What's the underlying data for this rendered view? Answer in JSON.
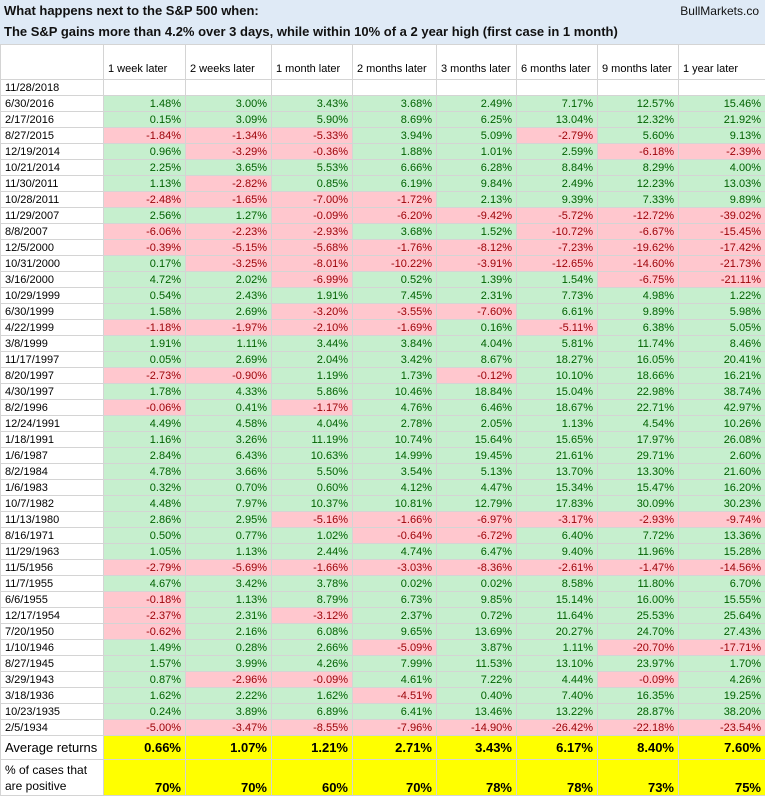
{
  "header": {
    "title": "What happens next to the S&P 500 when:",
    "source": "BullMarkets.co",
    "subtitle": "The S&P gains more than 4.2% over 3 days, while within 10% of a 2 year high (first case in 1 month)"
  },
  "table": {
    "columns": [
      "1 week later",
      "2 weeks later",
      "1 month later",
      "2 months later",
      "3 months later",
      "6 months later",
      "9 months later",
      "1 year later"
    ],
    "current": "11/28/2018",
    "rows": [
      [
        "6/30/2016",
        "1.48%",
        "3.00%",
        "3.43%",
        "3.68%",
        "2.49%",
        "7.17%",
        "12.57%",
        "15.46%"
      ],
      [
        "2/17/2016",
        "0.15%",
        "3.09%",
        "5.90%",
        "8.69%",
        "6.25%",
        "13.04%",
        "12.32%",
        "21.92%"
      ],
      [
        "8/27/2015",
        "-1.84%",
        "-1.34%",
        "-5.33%",
        "3.94%",
        "5.09%",
        "-2.79%",
        "5.60%",
        "9.13%"
      ],
      [
        "12/19/2014",
        "0.96%",
        "-3.29%",
        "-0.36%",
        "1.88%",
        "1.01%",
        "2.59%",
        "-6.18%",
        "-2.39%"
      ],
      [
        "10/21/2014",
        "2.25%",
        "3.65%",
        "5.53%",
        "6.66%",
        "6.28%",
        "8.84%",
        "8.29%",
        "4.00%"
      ],
      [
        "11/30/2011",
        "1.13%",
        "-2.82%",
        "0.85%",
        "6.19%",
        "9.84%",
        "2.49%",
        "12.23%",
        "13.03%"
      ],
      [
        "10/28/2011",
        "-2.48%",
        "-1.65%",
        "-7.00%",
        "-1.72%",
        "2.13%",
        "9.39%",
        "7.33%",
        "9.89%"
      ],
      [
        "11/29/2007",
        "2.56%",
        "1.27%",
        "-0.09%",
        "-6.20%",
        "-9.42%",
        "-5.72%",
        "-12.72%",
        "-39.02%"
      ],
      [
        "8/8/2007",
        "-6.06%",
        "-2.23%",
        "-2.93%",
        "3.68%",
        "1.52%",
        "-10.72%",
        "-6.67%",
        "-15.45%"
      ],
      [
        "12/5/2000",
        "-0.39%",
        "-5.15%",
        "-5.68%",
        "-1.76%",
        "-8.12%",
        "-7.23%",
        "-19.62%",
        "-17.42%"
      ],
      [
        "10/31/2000",
        "0.17%",
        "-3.25%",
        "-8.01%",
        "-10.22%",
        "-3.91%",
        "-12.65%",
        "-14.60%",
        "-21.73%"
      ],
      [
        "3/16/2000",
        "4.72%",
        "2.02%",
        "-6.99%",
        "0.52%",
        "1.39%",
        "1.54%",
        "-6.75%",
        "-21.11%"
      ],
      [
        "10/29/1999",
        "0.54%",
        "2.43%",
        "1.91%",
        "7.45%",
        "2.31%",
        "7.73%",
        "4.98%",
        "1.22%"
      ],
      [
        "6/30/1999",
        "1.58%",
        "2.69%",
        "-3.20%",
        "-3.55%",
        "-7.60%",
        "6.61%",
        "9.89%",
        "5.98%"
      ],
      [
        "4/22/1999",
        "-1.18%",
        "-1.97%",
        "-2.10%",
        "-1.69%",
        "0.16%",
        "-5.11%",
        "6.38%",
        "5.05%"
      ],
      [
        "3/8/1999",
        "1.91%",
        "1.11%",
        "3.44%",
        "3.84%",
        "4.04%",
        "5.81%",
        "11.74%",
        "8.46%"
      ],
      [
        "11/17/1997",
        "0.05%",
        "2.69%",
        "2.04%",
        "3.42%",
        "8.67%",
        "18.27%",
        "16.05%",
        "20.41%"
      ],
      [
        "8/20/1997",
        "-2.73%",
        "-0.90%",
        "1.19%",
        "1.73%",
        "-0.12%",
        "10.10%",
        "18.66%",
        "16.21%"
      ],
      [
        "4/30/1997",
        "1.78%",
        "4.33%",
        "5.86%",
        "10.46%",
        "18.84%",
        "15.04%",
        "22.98%",
        "38.74%"
      ],
      [
        "8/2/1996",
        "-0.06%",
        "0.41%",
        "-1.17%",
        "4.76%",
        "6.46%",
        "18.67%",
        "22.71%",
        "42.97%"
      ],
      [
        "12/24/1991",
        "4.49%",
        "4.58%",
        "4.04%",
        "2.78%",
        "2.05%",
        "1.13%",
        "4.54%",
        "10.26%"
      ],
      [
        "1/18/1991",
        "1.16%",
        "3.26%",
        "11.19%",
        "10.74%",
        "15.64%",
        "15.65%",
        "17.97%",
        "26.08%"
      ],
      [
        "1/6/1987",
        "2.84%",
        "6.43%",
        "10.63%",
        "14.99%",
        "19.45%",
        "21.61%",
        "29.71%",
        "2.60%"
      ],
      [
        "8/2/1984",
        "4.78%",
        "3.66%",
        "5.50%",
        "3.54%",
        "5.13%",
        "13.70%",
        "13.30%",
        "21.60%"
      ],
      [
        "1/6/1983",
        "0.32%",
        "0.70%",
        "0.60%",
        "4.12%",
        "4.47%",
        "15.34%",
        "15.47%",
        "16.20%"
      ],
      [
        "10/7/1982",
        "4.48%",
        "7.97%",
        "10.37%",
        "10.81%",
        "12.79%",
        "17.83%",
        "30.09%",
        "30.23%"
      ],
      [
        "11/13/1980",
        "2.86%",
        "2.95%",
        "-5.16%",
        "-1.66%",
        "-6.97%",
        "-3.17%",
        "-2.93%",
        "-9.74%"
      ],
      [
        "8/16/1971",
        "0.50%",
        "0.77%",
        "1.02%",
        "-0.64%",
        "-6.72%",
        "6.40%",
        "7.72%",
        "13.36%"
      ],
      [
        "11/29/1963",
        "1.05%",
        "1.13%",
        "2.44%",
        "4.74%",
        "6.47%",
        "9.40%",
        "11.96%",
        "15.28%"
      ],
      [
        "11/5/1956",
        "-2.79%",
        "-5.69%",
        "-1.66%",
        "-3.03%",
        "-8.36%",
        "-2.61%",
        "-1.47%",
        "-14.56%"
      ],
      [
        "11/7/1955",
        "4.67%",
        "3.42%",
        "3.78%",
        "0.02%",
        "0.02%",
        "8.58%",
        "11.80%",
        "6.70%"
      ],
      [
        "6/6/1955",
        "-0.18%",
        "1.13%",
        "8.79%",
        "6.73%",
        "9.85%",
        "15.14%",
        "16.00%",
        "15.55%"
      ],
      [
        "12/17/1954",
        "-2.37%",
        "2.31%",
        "-3.12%",
        "2.37%",
        "0.72%",
        "11.64%",
        "25.53%",
        "25.64%"
      ],
      [
        "7/20/1950",
        "-0.62%",
        "2.16%",
        "6.08%",
        "9.65%",
        "13.69%",
        "20.27%",
        "24.70%",
        "27.43%"
      ],
      [
        "1/10/1946",
        "1.49%",
        "0.28%",
        "2.66%",
        "-5.09%",
        "3.87%",
        "1.11%",
        "-20.70%",
        "-17.71%"
      ],
      [
        "8/27/1945",
        "1.57%",
        "3.99%",
        "4.26%",
        "7.99%",
        "11.53%",
        "13.10%",
        "23.97%",
        "1.70%"
      ],
      [
        "3/29/1943",
        "0.87%",
        "-2.96%",
        "-0.09%",
        "4.61%",
        "7.22%",
        "4.44%",
        "-0.09%",
        "4.26%"
      ],
      [
        "3/18/1936",
        "1.62%",
        "2.22%",
        "1.62%",
        "-4.51%",
        "0.40%",
        "7.40%",
        "16.35%",
        "19.25%"
      ],
      [
        "10/23/1935",
        "0.24%",
        "3.89%",
        "6.89%",
        "6.41%",
        "13.46%",
        "13.22%",
        "28.87%",
        "38.20%"
      ],
      [
        "2/5/1934",
        "-5.00%",
        "-3.47%",
        "-8.55%",
        "-7.96%",
        "-14.90%",
        "-26.42%",
        "-22.18%",
        "-23.54%"
      ]
    ],
    "summary": [
      [
        "Average returns",
        "0.66%",
        "1.07%",
        "1.21%",
        "2.71%",
        "3.43%",
        "6.17%",
        "8.40%",
        "7.60%"
      ],
      [
        "% of cases that are positive",
        "70%",
        "70%",
        "60%",
        "70%",
        "78%",
        "78%",
        "73%",
        "75%"
      ]
    ]
  }
}
